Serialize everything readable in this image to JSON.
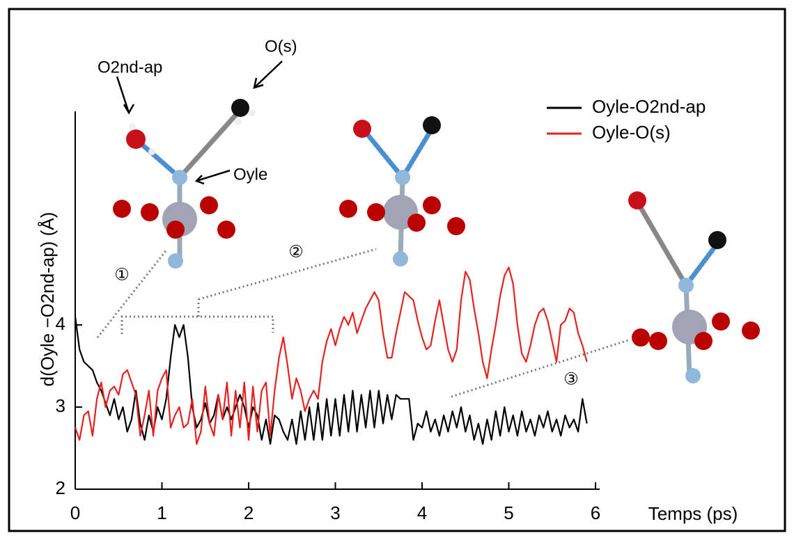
{
  "chart_data": {
    "type": "line",
    "ylabel": "d(Oyle −O2nd-ap) (Å)",
    "xlabel": "Temps (ps)",
    "annotations": [
      "O2nd-ap",
      "O(s)",
      "Oyle",
      "①",
      "②",
      "③"
    ],
    "xlim": [
      0,
      6
    ],
    "xticks": [
      0,
      1,
      2,
      3,
      4,
      5,
      6
    ],
    "ylim": [
      2,
      6.6
    ],
    "yticks": [
      2,
      3,
      4
    ],
    "x": [
      0,
      0.05,
      0.1,
      0.15,
      0.2,
      0.25,
      0.3,
      0.35,
      0.4,
      0.45,
      0.5,
      0.55,
      0.6,
      0.65,
      0.7,
      0.75,
      0.8,
      0.85,
      0.9,
      0.95,
      1,
      1.05,
      1.1,
      1.15,
      1.2,
      1.25,
      1.3,
      1.35,
      1.4,
      1.45,
      1.5,
      1.55,
      1.6,
      1.65,
      1.7,
      1.75,
      1.8,
      1.85,
      1.9,
      1.95,
      2,
      2.05,
      2.1,
      2.15,
      2.2,
      2.25,
      2.3,
      2.35,
      2.4,
      2.45,
      2.5,
      2.55,
      2.6,
      2.65,
      2.7,
      2.75,
      2.8,
      2.85,
      2.9,
      2.95,
      3,
      3.05,
      3.1,
      3.15,
      3.2,
      3.25,
      3.3,
      3.35,
      3.4,
      3.45,
      3.5,
      3.55,
      3.6,
      3.65,
      3.7,
      3.75,
      3.8,
      3.85,
      3.9,
      3.95,
      4,
      4.05,
      4.1,
      4.15,
      4.2,
      4.25,
      4.3,
      4.35,
      4.4,
      4.45,
      4.5,
      4.55,
      4.6,
      4.65,
      4.7,
      4.75,
      4.8,
      4.85,
      4.9,
      4.95,
      5,
      5.05,
      5.1,
      5.15,
      5.2,
      5.25,
      5.3,
      5.35,
      5.4,
      5.45,
      5.5,
      5.55,
      5.6,
      5.65,
      5.7,
      5.75,
      5.8,
      5.85,
      5.9
    ],
    "series": [
      {
        "name": "Oyle-O2nd-ap",
        "color": "#000000",
        "values": [
          4.1,
          3.7,
          3.55,
          3.5,
          3.45,
          3.3,
          3.2,
          3.05,
          2.9,
          3.1,
          2.85,
          3.0,
          2.7,
          2.85,
          3.2,
          2.8,
          2.6,
          2.9,
          2.7,
          3.0,
          2.85,
          3.1,
          3.6,
          4.0,
          3.85,
          4.0,
          3.6,
          3.0,
          2.75,
          2.85,
          3.05,
          2.8,
          2.9,
          3.15,
          2.85,
          3.0,
          2.85,
          3.0,
          3.15,
          3.0,
          2.75,
          3.0,
          2.9,
          2.6,
          2.85,
          2.55,
          2.9,
          2.85,
          2.7,
          2.6,
          2.85,
          2.55,
          2.95,
          2.6,
          3.0,
          2.6,
          3.05,
          2.6,
          3.1,
          2.65,
          3.1,
          2.65,
          3.15,
          2.7,
          3.2,
          2.7,
          3.15,
          2.75,
          3.2,
          2.75,
          3.2,
          2.8,
          3.15,
          2.85,
          3.15,
          3.1,
          3.1,
          3.1,
          2.6,
          2.8,
          2.75,
          2.95,
          2.7,
          2.85,
          2.65,
          2.9,
          2.7,
          2.95,
          2.75,
          3.0,
          2.7,
          2.9,
          2.6,
          2.8,
          2.55,
          2.85,
          2.6,
          2.95,
          2.65,
          3.0,
          2.7,
          2.9,
          2.65,
          2.95,
          2.7,
          2.85,
          2.65,
          2.9,
          2.75,
          2.95,
          2.7,
          2.85,
          2.65,
          2.9,
          2.75,
          2.85,
          2.7,
          3.1,
          2.8
        ]
      },
      {
        "name": "Oyle-O(s)",
        "color": "#e8201e",
        "values": [
          2.75,
          2.6,
          2.9,
          2.95,
          2.65,
          3.1,
          3.3,
          3.0,
          3.2,
          3.25,
          3.15,
          3.4,
          3.45,
          3.3,
          3.15,
          2.65,
          2.9,
          3.2,
          2.65,
          3.2,
          3.35,
          3.45,
          2.75,
          2.9,
          3.0,
          2.75,
          2.8,
          3.1,
          2.55,
          2.7,
          3.25,
          2.8,
          2.65,
          3.15,
          2.85,
          3.3,
          2.65,
          3.2,
          2.75,
          3.3,
          2.6,
          3.25,
          2.7,
          3.2,
          3.3,
          2.65,
          3.2,
          3.6,
          3.85,
          3.5,
          3.1,
          3.35,
          3.2,
          2.95,
          3.1,
          3.2,
          3.1,
          3.55,
          3.8,
          3.95,
          3.75,
          3.95,
          4.1,
          4.0,
          4.15,
          3.9,
          4.05,
          4.2,
          4.3,
          4.4,
          4.3,
          3.9,
          3.6,
          3.6,
          3.9,
          4.15,
          4.4,
          4.35,
          4.3,
          4.05,
          3.85,
          3.7,
          3.75,
          4.05,
          4.3,
          4.0,
          3.7,
          3.55,
          3.7,
          4.3,
          4.65,
          4.55,
          4.2,
          3.9,
          3.55,
          3.35,
          3.7,
          4.0,
          4.35,
          4.6,
          4.7,
          4.5,
          4.0,
          3.65,
          3.55,
          3.75,
          4.0,
          4.15,
          4.2,
          4.05,
          3.8,
          3.55,
          4.0,
          4.05,
          4.2,
          4.15,
          3.9,
          3.75,
          3.55
        ]
      }
    ]
  }
}
